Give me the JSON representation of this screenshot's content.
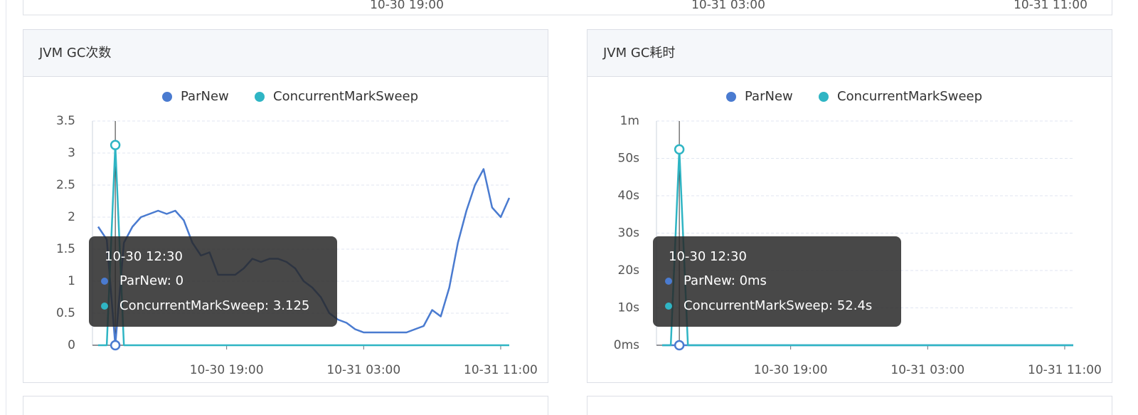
{
  "top_panel": {
    "xticks": [
      "10-30 19:00",
      "10-31 03:00",
      "10-31 11:00"
    ]
  },
  "chart_data": [
    {
      "type": "line",
      "title": "JVM GC次数",
      "x": [
        "10-30 11:30",
        "10-30 12:00",
        "10-30 12:30",
        "10-30 13:00",
        "10-30 13:30",
        "10-30 14:00",
        "10-30 14:30",
        "10-30 15:00",
        "10-30 15:30",
        "10-30 16:00",
        "10-30 16:30",
        "10-30 17:00",
        "10-30 17:30",
        "10-30 18:00",
        "10-30 18:30",
        "10-30 19:00",
        "10-30 19:30",
        "10-30 20:00",
        "10-30 20:30",
        "10-30 21:00",
        "10-30 21:30",
        "10-30 22:00",
        "10-30 22:30",
        "10-30 23:00",
        "10-30 23:30",
        "10-31 00:00",
        "10-31 00:30",
        "10-31 01:00",
        "10-31 01:30",
        "10-31 02:00",
        "10-31 02:30",
        "10-31 03:00",
        "10-31 03:30",
        "10-31 04:00",
        "10-31 04:30",
        "10-31 05:00",
        "10-31 05:30",
        "10-31 06:00",
        "10-31 06:30",
        "10-31 07:00",
        "10-31 07:30",
        "10-31 08:00",
        "10-31 08:30",
        "10-31 09:00",
        "10-31 09:30",
        "10-31 10:00",
        "10-31 10:30",
        "10-31 11:00",
        "10-31 11:30"
      ],
      "series": [
        {
          "name": "ParNew",
          "color": "#4a7bd0",
          "values": [
            1.85,
            1.65,
            0,
            1.6,
            1.85,
            2.0,
            2.05,
            2.1,
            2.05,
            2.1,
            1.95,
            1.6,
            1.4,
            1.45,
            1.1,
            1.1,
            1.1,
            1.2,
            1.35,
            1.3,
            1.35,
            1.35,
            1.3,
            1.2,
            1.0,
            0.9,
            0.75,
            0.5,
            0.4,
            0.35,
            0.25,
            0.2,
            0.2,
            0.2,
            0.2,
            0.2,
            0.2,
            0.25,
            0.3,
            0.55,
            0.45,
            0.9,
            1.6,
            2.1,
            2.5,
            2.75,
            2.15,
            2.0,
            2.3
          ]
        },
        {
          "name": "ConcurrentMarkSweep",
          "color": "#2fb5c4",
          "values": [
            0,
            0,
            3.125,
            0,
            0,
            0,
            0,
            0,
            0,
            0,
            0,
            0,
            0,
            0,
            0,
            0,
            0,
            0,
            0,
            0,
            0,
            0,
            0,
            0,
            0,
            0,
            0,
            0,
            0,
            0,
            0,
            0,
            0,
            0,
            0,
            0,
            0,
            0,
            0,
            0,
            0,
            0,
            0,
            0,
            0,
            0,
            0,
            0,
            0
          ]
        }
      ],
      "xlim": [
        "10-30 11:10",
        "10-31 11:30"
      ],
      "xticks": [
        "10-30 19:00",
        "10-31 03:00",
        "10-31 11:00"
      ],
      "ylim": [
        0,
        3.5
      ],
      "yticks": [
        0,
        0.5,
        1,
        1.5,
        2,
        2.5,
        3,
        3.5
      ],
      "grid": true,
      "tooltip": {
        "x": "10-30 12:30"
      }
    },
    {
      "type": "line",
      "title": "JVM GC耗时",
      "x": [
        "10-30 11:30",
        "10-30 12:00",
        "10-30 12:30",
        "10-30 13:00",
        "10-30 13:30",
        "10-30 14:00",
        "10-30 14:30",
        "10-30 15:00",
        "10-30 15:30",
        "10-30 16:00",
        "10-30 16:30",
        "10-30 17:00",
        "10-30 17:30",
        "10-30 18:00",
        "10-30 18:30",
        "10-30 19:00",
        "10-30 19:30",
        "10-30 20:00",
        "10-30 20:30",
        "10-30 21:00",
        "10-30 21:30",
        "10-30 22:00",
        "10-30 22:30",
        "10-30 23:00",
        "10-30 23:30",
        "10-31 00:00",
        "10-31 00:30",
        "10-31 01:00",
        "10-31 01:30",
        "10-31 02:00",
        "10-31 02:30",
        "10-31 03:00",
        "10-31 03:30",
        "10-31 04:00",
        "10-31 04:30",
        "10-31 05:00",
        "10-31 05:30",
        "10-31 06:00",
        "10-31 06:30",
        "10-31 07:00",
        "10-31 07:30",
        "10-31 08:00",
        "10-31 08:30",
        "10-31 09:00",
        "10-31 09:30",
        "10-31 10:00",
        "10-31 10:30",
        "10-31 11:00",
        "10-31 11:30"
      ],
      "series": [
        {
          "name": "ParNew",
          "color": "#4a7bd0",
          "values": [
            0,
            0,
            0,
            0,
            0,
            0,
            0,
            0,
            0,
            0,
            0,
            0,
            0,
            0,
            0,
            0,
            0,
            0,
            0,
            0,
            0,
            0,
            0,
            0,
            0,
            0,
            0,
            0,
            0,
            0,
            0,
            0,
            0,
            0,
            0,
            0,
            0,
            0,
            0,
            0,
            0,
            0,
            0,
            0,
            0,
            0,
            0,
            0,
            0
          ]
        },
        {
          "name": "ConcurrentMarkSweep",
          "color": "#2fb5c4",
          "values": [
            0,
            0,
            52.4,
            0,
            0,
            0,
            0,
            0,
            0,
            0,
            0,
            0,
            0,
            0,
            0,
            0,
            0,
            0,
            0,
            0,
            0,
            0,
            0,
            0,
            0,
            0,
            0,
            0,
            0,
            0,
            0,
            0,
            0,
            0,
            0,
            0,
            0,
            0,
            0,
            0,
            0,
            0,
            0,
            0,
            0,
            0,
            0,
            0,
            0
          ]
        }
      ],
      "xlim": [
        "10-30 11:10",
        "10-31 11:30"
      ],
      "xticks": [
        "10-30 19:00",
        "10-31 03:00",
        "10-31 11:00"
      ],
      "ylim": [
        0,
        60
      ],
      "yticks": [
        {
          "value": 0,
          "label": "0ms"
        },
        {
          "value": 10,
          "label": "10s"
        },
        {
          "value": 20,
          "label": "20s"
        },
        {
          "value": 30,
          "label": "30s"
        },
        {
          "value": 40,
          "label": "40s"
        },
        {
          "value": 50,
          "label": "50s"
        },
        {
          "value": 60,
          "label": "1m"
        }
      ],
      "grid": true,
      "tooltip": {
        "x": "10-30 12:30",
        "value_labels": [
          "0ms",
          "52.4s"
        ]
      }
    }
  ]
}
